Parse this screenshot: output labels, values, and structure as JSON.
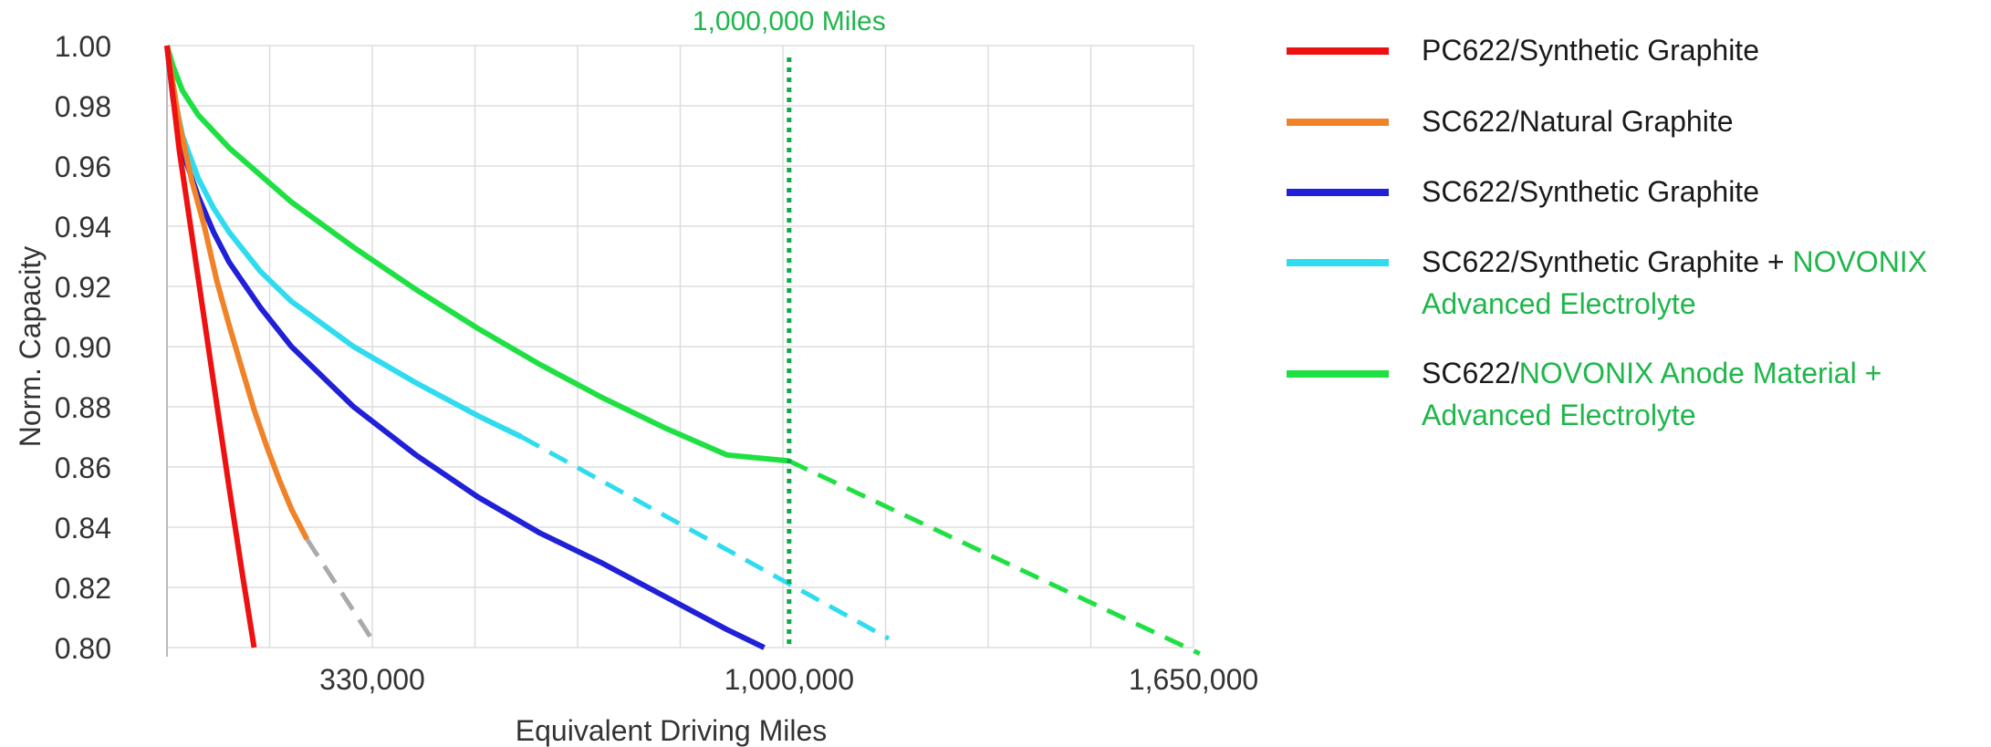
{
  "chart_data": {
    "type": "line",
    "xlabel": "Equivalent Driving Miles",
    "ylabel": "Norm. Capacity",
    "xlim": [
      0,
      1650000
    ],
    "ylim": [
      0.8,
      1.0
    ],
    "x_ticks": [
      330000,
      1000000,
      1650000
    ],
    "x_tick_labels": [
      "330,000",
      "1,000,000",
      "1,650,000"
    ],
    "y_ticks": [
      1.0,
      0.98,
      0.96,
      0.94,
      0.92,
      0.9,
      0.88,
      0.86,
      0.84,
      0.82,
      0.8
    ],
    "y_tick_labels": [
      "1.00",
      "0.98",
      "0.96",
      "0.94",
      "0.92",
      "0.90",
      "0.88",
      "0.86",
      "0.84",
      "0.82",
      "0.80"
    ],
    "grid": true,
    "legend_position": "right",
    "annotation": {
      "label": "1,000,000 Miles",
      "x": 1000000
    },
    "series": [
      {
        "name": "PC622/Synthetic Graphite",
        "color": "#ee1111",
        "style": "solid",
        "x": [
          0,
          20000,
          40000,
          60000,
          80000,
          100000,
          120000,
          140000
        ],
        "y": [
          1.0,
          0.965,
          0.937,
          0.909,
          0.881,
          0.853,
          0.826,
          0.8
        ]
      },
      {
        "name": "SC622/Natural Graphite",
        "color": "#f08228",
        "style": "solid",
        "x": [
          0,
          20000,
          40000,
          60000,
          80000,
          100000,
          120000,
          140000,
          160000,
          180000,
          200000,
          225000
        ],
        "y": [
          1.0,
          0.974,
          0.955,
          0.94,
          0.922,
          0.907,
          0.893,
          0.879,
          0.867,
          0.856,
          0.846,
          0.836
        ]
      },
      {
        "name": "SC622/Natural Graphite projection",
        "color": "#aaaaaa",
        "style": "dashed",
        "x": [
          225000,
          335000
        ],
        "y": [
          0.836,
          0.801
        ]
      },
      {
        "name": "SC622/Synthetic Graphite",
        "color": "#1f20d8",
        "style": "solid",
        "x": [
          0,
          10000,
          25000,
          50000,
          75000,
          100000,
          150000,
          200000,
          300000,
          400000,
          500000,
          600000,
          700000,
          800000,
          900000,
          960000
        ],
        "y": [
          1.0,
          0.982,
          0.965,
          0.95,
          0.938,
          0.928,
          0.913,
          0.9,
          0.88,
          0.864,
          0.85,
          0.838,
          0.828,
          0.817,
          0.806,
          0.8
        ]
      },
      {
        "name": "SC622/Synthetic Graphite + NOVONIX Advanced Electrolyte",
        "color": "#2fdcef",
        "style": "solid",
        "x": [
          0,
          10000,
          25000,
          50000,
          75000,
          100000,
          150000,
          200000,
          300000,
          400000,
          500000,
          570000
        ],
        "y": [
          1.0,
          0.985,
          0.97,
          0.956,
          0.946,
          0.938,
          0.925,
          0.915,
          0.9,
          0.888,
          0.877,
          0.87
        ]
      },
      {
        "name": "SC622/Synthetic Graphite + NOVONIX Advanced Electrolyte projection",
        "color": "#2fdcef",
        "style": "dashed",
        "x": [
          570000,
          1160000
        ],
        "y": [
          0.87,
          0.803
        ]
      },
      {
        "name": "SC622/NOVONIX Anode Material + Advanced Electrolyte",
        "color": "#1fe043",
        "style": "solid",
        "x": [
          0,
          10000,
          25000,
          50000,
          100000,
          150000,
          200000,
          300000,
          400000,
          500000,
          600000,
          700000,
          800000,
          900000,
          1000000
        ],
        "y": [
          1.0,
          0.993,
          0.985,
          0.977,
          0.966,
          0.957,
          0.948,
          0.933,
          0.919,
          0.906,
          0.894,
          0.883,
          0.873,
          0.864,
          0.862
        ]
      },
      {
        "name": "SC622/NOVONIX Anode Material + Advanced Electrolyte projection",
        "color": "#1fe043",
        "style": "dashed",
        "x": [
          1000000,
          1660000
        ],
        "y": [
          0.862,
          0.798
        ]
      }
    ]
  },
  "legend": {
    "items": [
      {
        "color": "#ee1111",
        "parts": [
          {
            "text": "PC622/Synthetic Graphite",
            "green": false
          }
        ]
      },
      {
        "color": "#f08228",
        "parts": [
          {
            "text": "SC622/Natural Graphite",
            "green": false
          }
        ]
      },
      {
        "color": "#1f20d8",
        "parts": [
          {
            "text": "SC622/Synthetic Graphite",
            "green": false
          }
        ]
      },
      {
        "color": "#2fdcef",
        "parts": [
          {
            "text": "SC622/Synthetic Graphite + ",
            "green": false
          },
          {
            "text": "NOVONIX Advanced Electrolyte",
            "green": true
          }
        ]
      },
      {
        "color": "#1fe043",
        "parts": [
          {
            "text": "SC622/",
            "green": false
          },
          {
            "text": "NOVONIX Anode Material + Advanced Electrolyte",
            "green": true
          }
        ]
      }
    ]
  }
}
